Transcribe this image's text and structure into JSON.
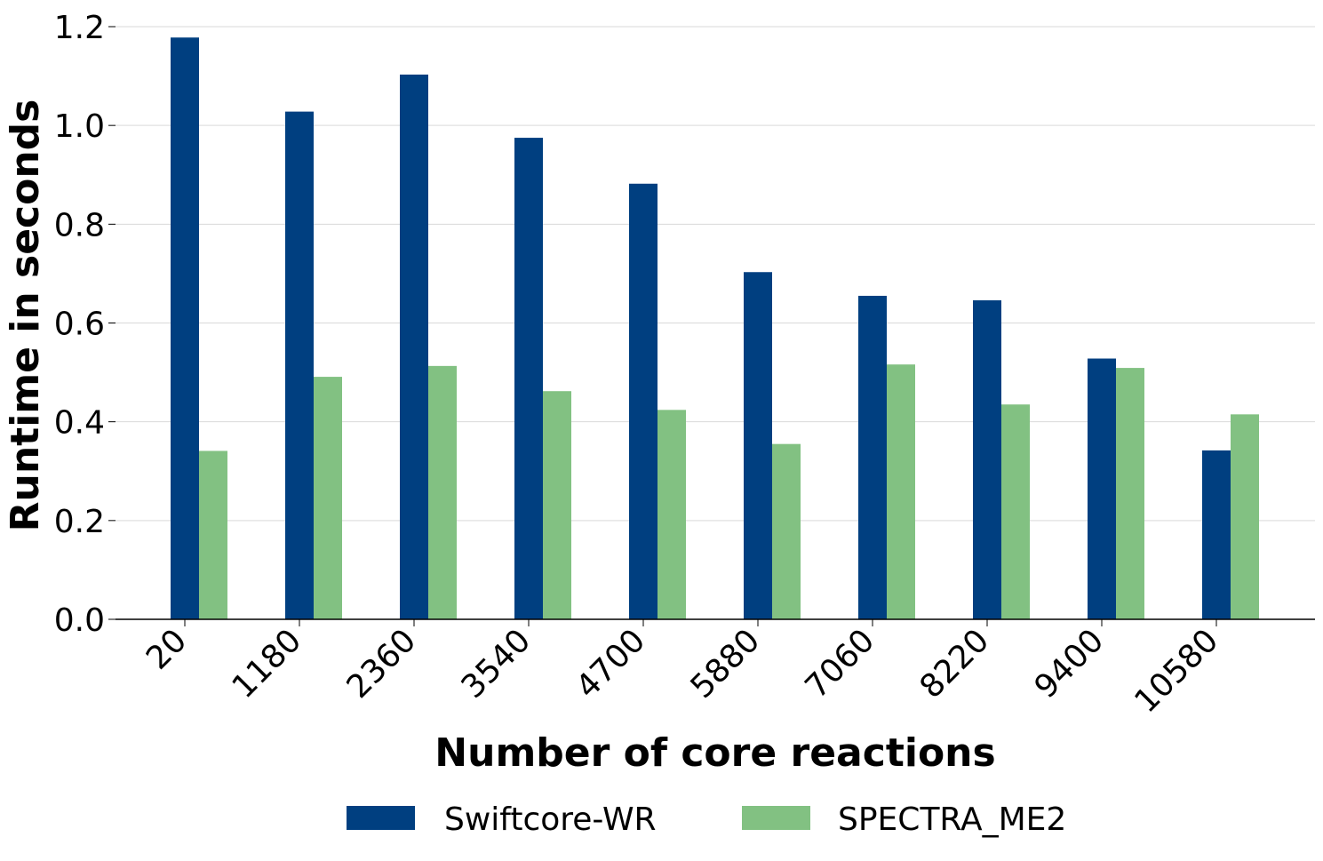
{
  "chart_data": {
    "type": "bar",
    "title": "",
    "xlabel": "Number of core reactions",
    "ylabel": "Runtime in seconds",
    "categories": [
      "20",
      "1180",
      "2360",
      "3540",
      "4700",
      "5880",
      "7060",
      "8220",
      "9400",
      "10580"
    ],
    "series": [
      {
        "name": "Swiftcore-WR",
        "color": "#003f80",
        "values": [
          1.178,
          1.028,
          1.103,
          0.975,
          0.882,
          0.703,
          0.655,
          0.646,
          0.528,
          0.342
        ]
      },
      {
        "name": "SPECTRA_ME2",
        "color": "#82c182",
        "values": [
          0.341,
          0.491,
          0.513,
          0.462,
          0.424,
          0.355,
          0.516,
          0.435,
          0.509,
          0.415
        ]
      }
    ],
    "ylim": [
      0,
      1.2
    ],
    "yticks": [
      "0.0",
      "0.2",
      "0.4",
      "0.6",
      "0.8",
      "1.0",
      "1.2"
    ],
    "grid": "horizontal",
    "legend_position": "bottom-center"
  }
}
